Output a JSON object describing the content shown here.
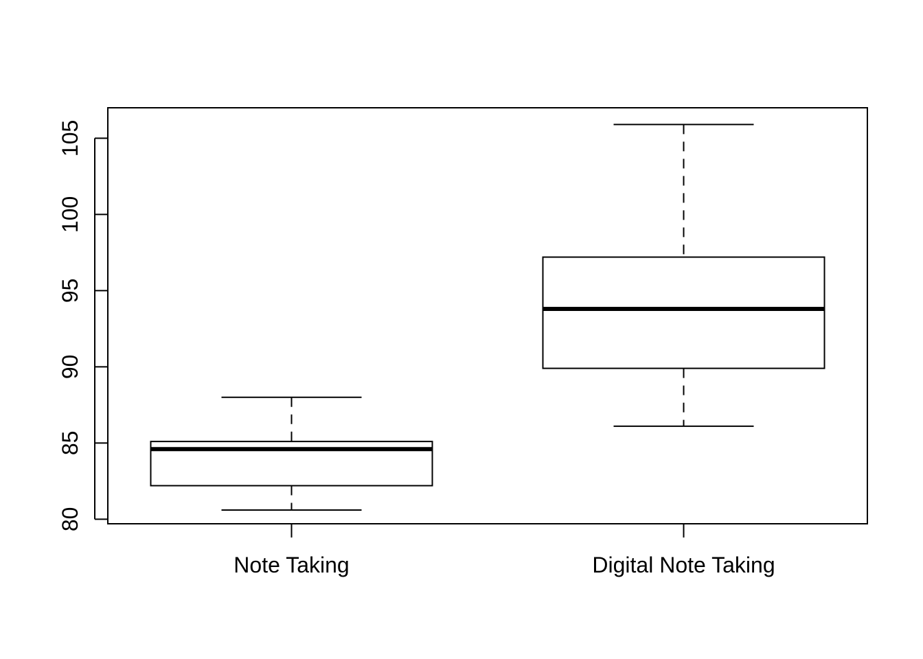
{
  "chart_data": {
    "type": "boxplot",
    "title": "",
    "xlabel": "",
    "ylabel": "",
    "ylim": [
      79.7,
      107
    ],
    "yticks": [
      80,
      85,
      90,
      95,
      100,
      105
    ],
    "categories": [
      "Note Taking",
      "Digital Note Taking"
    ],
    "boxes": [
      {
        "label": "Note Taking",
        "min": 80.6,
        "q1": 82.2,
        "median": 84.6,
        "q3": 85.1,
        "max": 88.0
      },
      {
        "label": "Digital Note Taking",
        "min": 86.1,
        "q1": 89.9,
        "median": 93.8,
        "q3": 97.2,
        "max": 105.9
      }
    ],
    "grid": false,
    "colors": {
      "stroke": "#000000",
      "fill": "#ffffff"
    }
  }
}
